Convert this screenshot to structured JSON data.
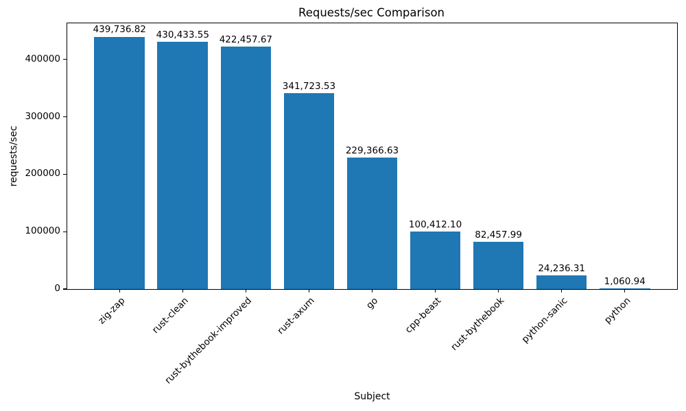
{
  "chart_data": {
    "type": "bar",
    "title": "Requests/sec Comparison",
    "xlabel": "Subject",
    "ylabel": "requests/sec",
    "categories": [
      "zig-zap",
      "rust-clean",
      "rust-bythebook-improved",
      "rust-axum",
      "go",
      "cpp-beast",
      "rust-bythebook",
      "python-sanic",
      "python"
    ],
    "values": [
      439736.82,
      430433.55,
      422457.67,
      341723.53,
      229366.63,
      100412.1,
      82457.99,
      24236.31,
      1060.94
    ],
    "value_labels": [
      "439,736.82",
      "430,433.55",
      "422,457.67",
      "341,723.53",
      "229,366.63",
      "100,412.10",
      "82,457.99",
      "24,236.31",
      "1,060.94"
    ],
    "yticks": [
      0,
      100000,
      200000,
      300000,
      400000
    ],
    "ytick_labels": [
      "0",
      "100000",
      "200000",
      "300000",
      "400000"
    ],
    "ylim": [
      0,
      463000
    ],
    "bar_color": "#1f77b4",
    "text_color": "#000000",
    "grid": false,
    "legend": null,
    "x_label_rotation_deg": 45
  }
}
